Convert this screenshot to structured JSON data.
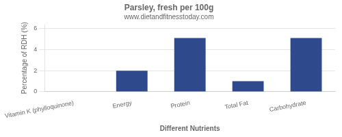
{
  "chart_data": {
    "type": "bar",
    "title": "Parsley, fresh per 100g",
    "subtitle": "www.dietandfitnesstoday.com",
    "xlabel": "Different Nutrients",
    "ylabel": "Percentage of RDH (%)",
    "categories": [
      "Vitamin K (phylloquinone)",
      "Energy",
      "Protein",
      "Total Fat",
      "Carbohydrate"
    ],
    "values": [
      0.0,
      2.0,
      5.1,
      1.0,
      5.1
    ],
    "color": "#2e4a8c",
    "ylim": [
      0,
      6.4
    ],
    "yticks": [
      0,
      2,
      4,
      6
    ],
    "grid": true
  }
}
